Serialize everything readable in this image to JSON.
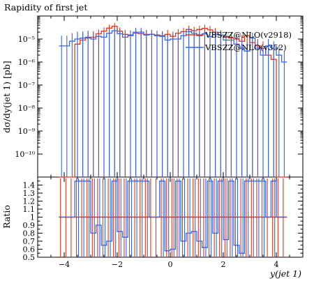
{
  "chart_data": {
    "type": "line",
    "title": "Rapidity of first jet",
    "xlabel": "y(jet 1)",
    "ylabel": "dσ/dy(jet 1) [pb]",
    "ratio_ylabel": "Ratio",
    "xlim": [
      -5,
      5
    ],
    "ylim": [
      1e-11,
      0.0001
    ],
    "yscale": "log",
    "ratio_ylim": [
      0.5,
      1.5
    ],
    "x_ticks": [
      -4,
      -2,
      0,
      2,
      4
    ],
    "x_tick_labels": [
      "−4",
      "−2",
      "0",
      "2",
      "4"
    ],
    "y_ticks": [
      1e-10,
      1e-09,
      1e-08,
      1e-07,
      1e-06,
      1e-05
    ],
    "y_tick_labels": [
      "10⁻¹⁰",
      "10⁻⁹",
      "10⁻⁸",
      "10⁻⁷",
      "10⁻⁶",
      "10⁻⁵"
    ],
    "ratio_ticks": [
      0.5,
      0.6,
      0.7,
      0.8,
      0.9,
      1,
      1.1,
      1.2,
      1.3,
      1.4
    ],
    "ratio_tick_labels": [
      "0.5",
      "0.6",
      "0.7",
      "0.8",
      "0.9",
      "1",
      "1.1",
      "1.2",
      "1.3",
      "1.4"
    ],
    "legend_position": "top-right",
    "bin_edges": [
      -4.2,
      -4.0,
      -3.8,
      -3.6,
      -3.4,
      -3.2,
      -3.0,
      -2.8,
      -2.6,
      -2.4,
      -2.2,
      -2.0,
      -1.8,
      -1.6,
      -1.4,
      -1.2,
      -1.0,
      -0.8,
      -0.6,
      -0.4,
      -0.2,
      0.0,
      0.2,
      0.4,
      0.6,
      0.8,
      1.0,
      1.2,
      1.4,
      1.6,
      1.8,
      2.0,
      2.2,
      2.4,
      2.6,
      2.8,
      3.0,
      3.2,
      3.4,
      3.6,
      3.8,
      4.0,
      4.2,
      4.4
    ],
    "series": [
      {
        "name": "VBSZZ@NLO(v2918)",
        "color": "#ee3311",
        "values": [
          1e-11,
          1e-11,
          1e-11,
          6e-06,
          9e-06,
          1.1e-05,
          1.2e-05,
          1.7e-05,
          2.2e-05,
          3e-05,
          3.6e-05,
          2.2e-05,
          1.6e-05,
          1.5e-05,
          1.8e-05,
          1.7e-05,
          1.6e-05,
          1.6e-05,
          1.5e-05,
          1.4e-05,
          1.6e-05,
          1.3e-05,
          1.8e-05,
          2.1e-05,
          2.6e-05,
          2.3e-05,
          2.6e-05,
          2.9e-05,
          2.5e-05,
          2e-05,
          1.5e-05,
          1.3e-05,
          1.1e-05,
          1e-05,
          8e-06,
          1.4e-05,
          7e-06,
          5e-06,
          4e-06,
          2e-06,
          1.3e-06,
          1e-11,
          1e-11
        ],
        "errors_up": [
          0,
          0,
          0,
          1.5e-05,
          1.2e-05,
          1.2e-05,
          1e-05,
          9e-06,
          1e-05,
          1.2e-05,
          1.4e-05,
          1e-05,
          9e-06,
          9e-06,
          1e-05,
          9e-06,
          9e-06,
          9e-06,
          8e-06,
          8e-06,
          9e-06,
          8e-06,
          9e-06,
          1e-05,
          1.2e-05,
          1.1e-05,
          1.2e-05,
          1.3e-05,
          1.2e-05,
          1e-05,
          9e-06,
          8e-06,
          8e-06,
          7e-06,
          6e-06,
          8e-06,
          6e-06,
          5e-06,
          4e-06,
          3e-06,
          2e-06,
          0,
          0
        ]
      },
      {
        "name": "VBSZZ@NLO(v352)",
        "color": "#3366ee",
        "values": [
          5e-06,
          5e-06,
          8e-06,
          1e-05,
          1.1e-05,
          1.2e-05,
          1e-05,
          1.3e-05,
          1.2e-05,
          1.8e-05,
          2.3e-05,
          1.7e-05,
          1.2e-05,
          1.4e-05,
          2e-05,
          2e-05,
          1.5e-05,
          1.6e-05,
          1.4e-05,
          1.3e-05,
          9e-06,
          1e-05,
          1e-05,
          1.4e-05,
          2.1e-05,
          1.8e-05,
          1.4e-05,
          1.7e-05,
          1.3e-05,
          1.6e-05,
          1.5e-05,
          9e-06,
          9e-06,
          6e-06,
          4e-06,
          3e-06,
          1.1e-05,
          4e-06,
          2e-06,
          5e-06,
          4e-06,
          2e-06,
          1e-06
        ],
        "errors_up": [
          9e-06,
          9e-06,
          1e-05,
          1e-05,
          1e-05,
          1e-05,
          9e-06,
          9e-06,
          9e-06,
          1e-05,
          1.1e-05,
          1e-05,
          9e-06,
          9e-06,
          1.1e-05,
          1.1e-05,
          9e-06,
          9e-06,
          8e-06,
          8e-06,
          7e-06,
          7e-06,
          7e-06,
          8e-06,
          1e-05,
          9e-06,
          8e-06,
          9e-06,
          8e-06,
          9e-06,
          8e-06,
          7e-06,
          7e-06,
          6e-06,
          5e-06,
          4e-06,
          8e-06,
          5e-06,
          3e-06,
          5e-06,
          4e-06,
          3e-06,
          2e-06
        ]
      }
    ],
    "ratio_series": [
      {
        "name": "VBSZZ@NLO(v2918)",
        "values": [
          1,
          1,
          1,
          1,
          1,
          1,
          1,
          1,
          1,
          1,
          1,
          1,
          1,
          1,
          1,
          1,
          1,
          1,
          1,
          1,
          1,
          1,
          1,
          1,
          1,
          1,
          1,
          1,
          1,
          1,
          1,
          1,
          1,
          1,
          1,
          1,
          1,
          1,
          1,
          1,
          1,
          1,
          1
        ]
      },
      {
        "name": "VBSZZ@NLO(v352)",
        "values": [
          1,
          1,
          1,
          1.45,
          1.45,
          1.45,
          0.8,
          0.9,
          0.65,
          0.7,
          1.45,
          0.82,
          0.75,
          1.45,
          1.45,
          1.45,
          1.45,
          1,
          1,
          1.45,
          0.58,
          0.6,
          1.45,
          0.7,
          0.8,
          0.82,
          0.7,
          0.62,
          1.45,
          0.8,
          1.45,
          0.72,
          1.45,
          0.65,
          0.55,
          1.45,
          1.45,
          1.45,
          1.45,
          1,
          1.45,
          1,
          1
        ]
      }
    ]
  }
}
